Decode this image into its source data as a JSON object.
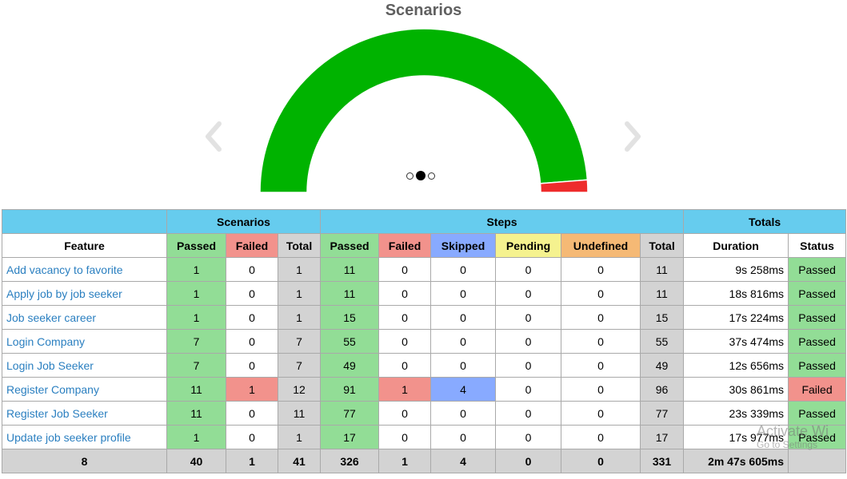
{
  "chart_data": {
    "type": "pie",
    "title": "Scenarios",
    "slices": [
      {
        "name": "Passed",
        "value": 40,
        "color": "#00b300"
      },
      {
        "name": "Failed",
        "value": 1,
        "color": "#ee2c2c"
      }
    ],
    "style": "semi-circle gauge"
  },
  "carousel": {
    "prev_icon": "chevron-left-icon",
    "next_icon": "chevron-right-icon",
    "slide_count": 3,
    "active_slide": 2
  },
  "table": {
    "group_headers": {
      "scenarios": "Scenarios",
      "steps": "Steps",
      "totals": "Totals"
    },
    "headers": {
      "feature": "Feature",
      "sc_passed": "Passed",
      "sc_failed": "Failed",
      "sc_total": "Total",
      "st_passed": "Passed",
      "st_failed": "Failed",
      "st_skipped": "Skipped",
      "st_pending": "Pending",
      "st_undefined": "Undefined",
      "st_total": "Total",
      "duration": "Duration",
      "status": "Status"
    },
    "rows": [
      {
        "feature": "Add vacancy to favorite",
        "sc_passed": "1",
        "sc_failed": "0",
        "sc_total": "1",
        "st_passed": "11",
        "st_failed": "0",
        "st_skipped": "0",
        "st_pending": "0",
        "st_undefined": "0",
        "st_total": "11",
        "duration": "9s 258ms",
        "status": "Passed"
      },
      {
        "feature": "Apply job by job seeker",
        "sc_passed": "1",
        "sc_failed": "0",
        "sc_total": "1",
        "st_passed": "11",
        "st_failed": "0",
        "st_skipped": "0",
        "st_pending": "0",
        "st_undefined": "0",
        "st_total": "11",
        "duration": "18s 816ms",
        "status": "Passed"
      },
      {
        "feature": "Job seeker career",
        "sc_passed": "1",
        "sc_failed": "0",
        "sc_total": "1",
        "st_passed": "15",
        "st_failed": "0",
        "st_skipped": "0",
        "st_pending": "0",
        "st_undefined": "0",
        "st_total": "15",
        "duration": "17s 224ms",
        "status": "Passed"
      },
      {
        "feature": "Login Company",
        "sc_passed": "7",
        "sc_failed": "0",
        "sc_total": "7",
        "st_passed": "55",
        "st_failed": "0",
        "st_skipped": "0",
        "st_pending": "0",
        "st_undefined": "0",
        "st_total": "55",
        "duration": "37s 474ms",
        "status": "Passed"
      },
      {
        "feature": "Login Job Seeker",
        "sc_passed": "7",
        "sc_failed": "0",
        "sc_total": "7",
        "st_passed": "49",
        "st_failed": "0",
        "st_skipped": "0",
        "st_pending": "0",
        "st_undefined": "0",
        "st_total": "49",
        "duration": "12s 656ms",
        "status": "Passed"
      },
      {
        "feature": "Register Company",
        "sc_passed": "11",
        "sc_failed": "1",
        "sc_total": "12",
        "st_passed": "91",
        "st_failed": "1",
        "st_skipped": "4",
        "st_pending": "0",
        "st_undefined": "0",
        "st_total": "96",
        "duration": "30s 861ms",
        "status": "Failed"
      },
      {
        "feature": "Register Job Seeker",
        "sc_passed": "11",
        "sc_failed": "0",
        "sc_total": "11",
        "st_passed": "77",
        "st_failed": "0",
        "st_skipped": "0",
        "st_pending": "0",
        "st_undefined": "0",
        "st_total": "77",
        "duration": "23s 339ms",
        "status": "Passed"
      },
      {
        "feature": "Update job seeker profile",
        "sc_passed": "1",
        "sc_failed": "0",
        "sc_total": "1",
        "st_passed": "17",
        "st_failed": "0",
        "st_skipped": "0",
        "st_pending": "0",
        "st_undefined": "0",
        "st_total": "17",
        "duration": "17s 977ms",
        "status": "Passed"
      }
    ],
    "totals": {
      "feature": "8",
      "sc_passed": "40",
      "sc_failed": "1",
      "sc_total": "41",
      "st_passed": "326",
      "st_failed": "1",
      "st_skipped": "4",
      "st_pending": "0",
      "st_undefined": "0",
      "st_total": "331",
      "duration": "2m 47s 605ms",
      "status": ""
    }
  },
  "colors": {
    "passed": "#92dd96",
    "failed": "#f2928c",
    "skipped": "#88aaff",
    "pending": "#f5f28f",
    "undefined": "#f5b975",
    "total": "#d3d3d3",
    "group_header": "#66ccee",
    "link": "#2a7fc0"
  },
  "watermark": {
    "line1": "Activate Wi",
    "line2": "Go to Settings"
  }
}
